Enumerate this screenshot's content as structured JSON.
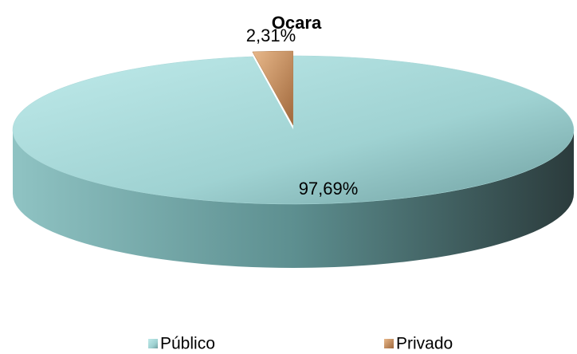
{
  "chart_data": {
    "type": "pie",
    "title": "Ocara",
    "categories": [
      "Público",
      "Privado"
    ],
    "values": [
      97.69,
      2.31
    ],
    "value_labels": [
      "97,69%",
      "2,31%"
    ],
    "colors": [
      "#8fcaca",
      "#c8925e"
    ]
  }
}
